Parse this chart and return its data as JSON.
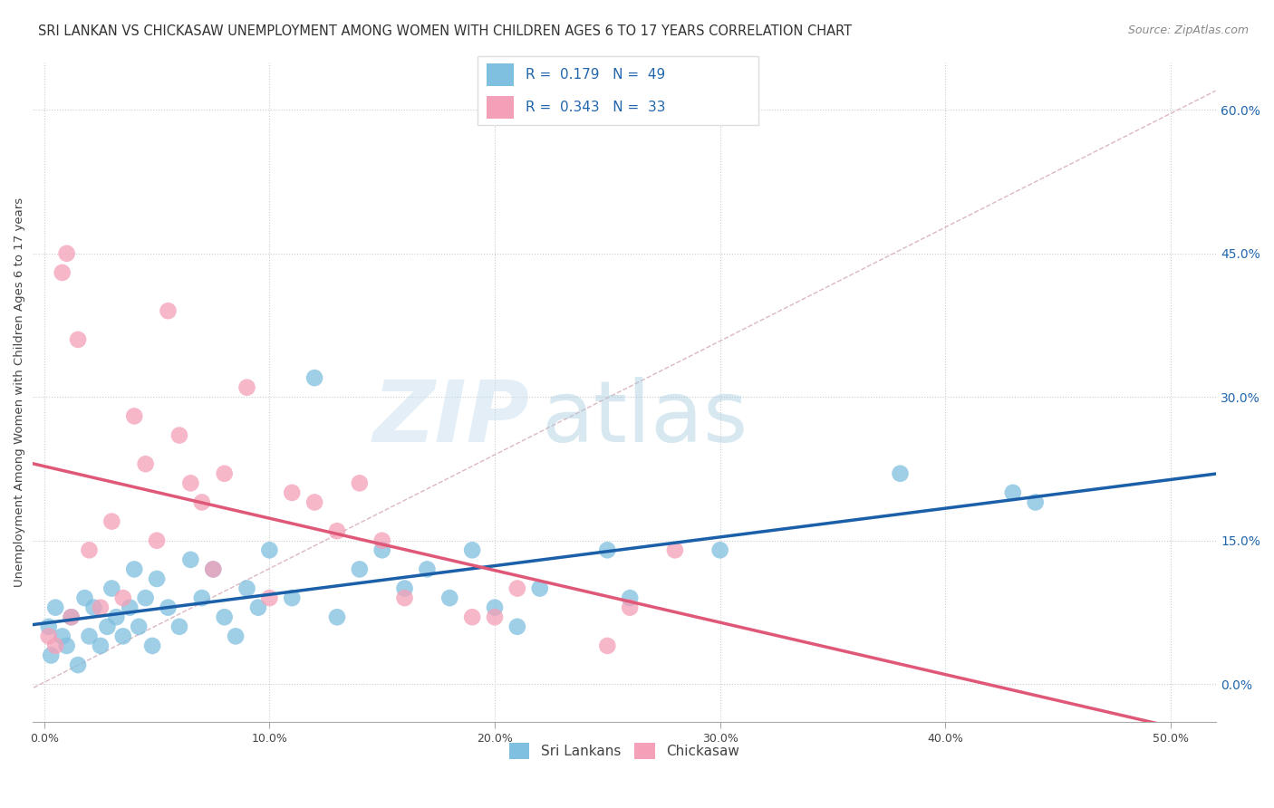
{
  "title": "SRI LANKAN VS CHICKASAW UNEMPLOYMENT AMONG WOMEN WITH CHILDREN AGES 6 TO 17 YEARS CORRELATION CHART",
  "source": "Source: ZipAtlas.com",
  "ylabel": "Unemployment Among Women with Children Ages 6 to 17 years",
  "xlabel_vals": [
    0,
    10,
    20,
    30,
    40,
    50
  ],
  "ylabel_vals": [
    0,
    15,
    30,
    45,
    60
  ],
  "xlim": [
    -0.5,
    52
  ],
  "ylim": [
    -4,
    65
  ],
  "legend_sri": "Sri Lankans",
  "legend_chick": "Chickasaw",
  "sri_R": "0.179",
  "sri_N": "49",
  "chick_R": "0.343",
  "chick_N": "33",
  "sri_color": "#7fbfdf",
  "chick_color": "#f4a0b8",
  "sri_line_color": "#1a5fa8",
  "chick_line_color": "#e05878",
  "diagonal_color": "#d8b0b8",
  "watermark_zip": "ZIP",
  "watermark_atlas": "atlas",
  "title_fontsize": 10.5,
  "source_fontsize": 9,
  "axis_label_fontsize": 9.5,
  "tick_fontsize": 9,
  "legend_fontsize": 10,
  "sri_x": [
    0.2,
    0.3,
    0.5,
    0.8,
    1.0,
    1.2,
    1.5,
    1.8,
    2.0,
    2.2,
    2.5,
    2.8,
    3.0,
    3.2,
    3.5,
    3.8,
    4.0,
    4.2,
    4.5,
    4.8,
    5.0,
    5.5,
    6.0,
    6.5,
    7.0,
    7.5,
    8.0,
    8.5,
    9.0,
    9.5,
    10.0,
    11.0,
    12.0,
    13.0,
    14.0,
    15.0,
    16.0,
    17.0,
    18.0,
    19.0,
    20.0,
    21.0,
    22.0,
    25.0,
    26.0,
    30.0,
    38.0,
    43.0,
    44.0
  ],
  "sri_y": [
    6.0,
    3.0,
    8.0,
    5.0,
    4.0,
    7.0,
    2.0,
    9.0,
    5.0,
    8.0,
    4.0,
    6.0,
    10.0,
    7.0,
    5.0,
    8.0,
    12.0,
    6.0,
    9.0,
    4.0,
    11.0,
    8.0,
    6.0,
    13.0,
    9.0,
    12.0,
    7.0,
    5.0,
    10.0,
    8.0,
    14.0,
    9.0,
    32.0,
    7.0,
    12.0,
    14.0,
    10.0,
    12.0,
    9.0,
    14.0,
    8.0,
    6.0,
    10.0,
    14.0,
    9.0,
    14.0,
    22.0,
    20.0,
    19.0
  ],
  "chick_x": [
    0.2,
    0.5,
    0.8,
    1.0,
    1.2,
    1.5,
    2.0,
    2.5,
    3.0,
    3.5,
    4.0,
    4.5,
    5.0,
    5.5,
    6.0,
    6.5,
    7.0,
    7.5,
    8.0,
    9.0,
    10.0,
    11.0,
    12.0,
    13.0,
    14.0,
    15.0,
    16.0,
    19.0,
    20.0,
    21.0,
    25.0,
    26.0,
    28.0
  ],
  "chick_y": [
    5.0,
    4.0,
    43.0,
    45.0,
    7.0,
    36.0,
    14.0,
    8.0,
    17.0,
    9.0,
    28.0,
    23.0,
    15.0,
    39.0,
    26.0,
    21.0,
    19.0,
    12.0,
    22.0,
    31.0,
    9.0,
    20.0,
    19.0,
    16.0,
    21.0,
    15.0,
    9.0,
    7.0,
    7.0,
    10.0,
    4.0,
    8.0,
    14.0
  ]
}
